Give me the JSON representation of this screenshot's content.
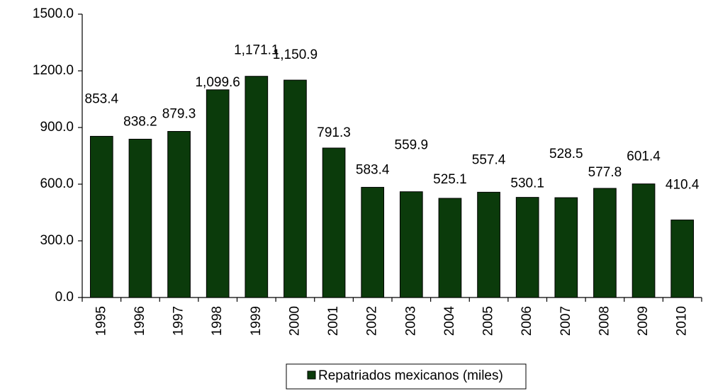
{
  "chart_data": {
    "type": "bar",
    "categories": [
      "1995",
      "1996",
      "1997",
      "1998",
      "1999",
      "2000",
      "2001",
      "2002",
      "2003",
      "2004",
      "2005",
      "2006",
      "2007",
      "2008",
      "2009",
      "2010"
    ],
    "series": [
      {
        "name": "Repatriados mexicanos (miles)",
        "color": "#0b3b0b",
        "values": [
          853.4,
          838.2,
          879.3,
          1099.6,
          1171.1,
          1150.9,
          791.3,
          583.4,
          559.9,
          525.1,
          557.4,
          530.1,
          528.5,
          577.8,
          601.4,
          410.4
        ],
        "value_labels": [
          "853.4",
          "838.2",
          "879.3",
          "1,099.6",
          "1,171.1",
          "1,150.9",
          "791.3",
          "583.4",
          "559.9",
          "525.1",
          "557.4",
          "530.1",
          "528.5",
          "577.8",
          "601.4",
          "410.4"
        ]
      }
    ],
    "ylim": [
      0,
      1500
    ],
    "yticks": [
      {
        "value": 0,
        "label": "0.0"
      },
      {
        "value": 300,
        "label": "300.0"
      },
      {
        "value": 600,
        "label": "600.0"
      },
      {
        "value": 900,
        "label": "900.0"
      },
      {
        "value": 1200,
        "label": "1200.0"
      },
      {
        "value": 1500,
        "label": "1500.0"
      }
    ],
    "legend": "bottom"
  }
}
